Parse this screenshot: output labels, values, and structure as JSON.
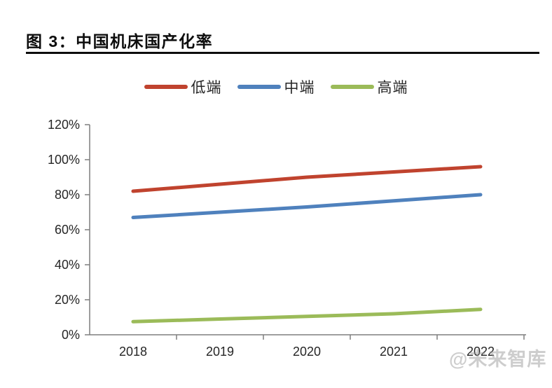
{
  "watermark": "@未来智库",
  "chart_data": {
    "type": "line",
    "title": "图 3：中国机床国产化率",
    "categories": [
      "2018",
      "2019",
      "2020",
      "2021",
      "2022"
    ],
    "series": [
      {
        "name": "低端",
        "color": "#c0432e",
        "values": [
          82,
          86,
          90,
          93,
          96
        ]
      },
      {
        "name": "中端",
        "color": "#4f81bd",
        "values": [
          67,
          70,
          73,
          76.5,
          80
        ]
      },
      {
        "name": "高端",
        "color": "#9bbb59",
        "values": [
          7.5,
          9,
          10.5,
          12,
          14.5
        ]
      }
    ],
    "ylim": [
      0,
      120
    ],
    "yticks": [
      {
        "value": 0,
        "label": "0%"
      },
      {
        "value": 20,
        "label": "20%"
      },
      {
        "value": 40,
        "label": "40%"
      },
      {
        "value": 60,
        "label": "60%"
      },
      {
        "value": 80,
        "label": "80%"
      },
      {
        "value": 100,
        "label": "100%"
      },
      {
        "value": 120,
        "label": "120%"
      }
    ],
    "legend_position": "top",
    "grid": false,
    "axis_color": "#7f7f7f",
    "tick_label_color": "#262626",
    "line_width": 5
  }
}
